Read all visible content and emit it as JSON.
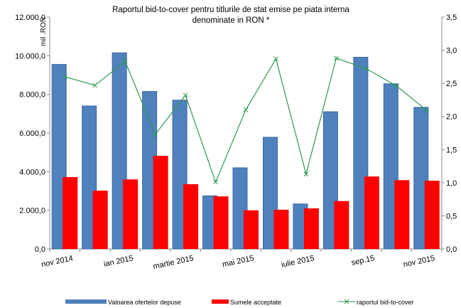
{
  "chart_data": {
    "type": "bar_line",
    "title": [
      "Raportul bid-to-cover pentru titlurile de stat emise pe piata interna",
      "denominate in RON *"
    ],
    "y_unit_label": "mil .RON",
    "categories": [
      "nov 2014",
      null,
      "ian 2015",
      null,
      "martie 2015",
      null,
      "mai  2015",
      null,
      "iulie 2015",
      null,
      "sep.15",
      null,
      "nov 2015"
    ],
    "series": [
      {
        "name": "Valoarea ofertelor depuse",
        "color": "#4f81bd",
        "kind": "bar",
        "values": [
          9550,
          7400,
          10150,
          8150,
          7700,
          2750,
          4200,
          5780,
          2330,
          7100,
          9920,
          8550,
          7330
        ]
      },
      {
        "name": "Sumele acceptate",
        "color": "#ff0000",
        "kind": "bar",
        "values": [
          3720,
          3020,
          3600,
          4820,
          3350,
          2720,
          2000,
          2030,
          2100,
          2480,
          3750,
          3560,
          3530
        ]
      },
      {
        "name": "raportul bid-to-cover",
        "color": "#2e9a4e",
        "kind": "line",
        "axis": "y2",
        "values": [
          2.6,
          2.47,
          2.83,
          1.73,
          2.32,
          1.01,
          2.1,
          2.87,
          1.13,
          2.88,
          2.72,
          2.46,
          2.09
        ]
      }
    ],
    "ylim": [
      0,
      12000
    ],
    "yticks": [
      {
        "value": 0,
        "label": "0,0"
      },
      {
        "value": 2000,
        "label": "2.000,0"
      },
      {
        "value": 4000,
        "label": "4.000,0"
      },
      {
        "value": 6000,
        "label": "6.000,0"
      },
      {
        "value": 8000,
        "label": "8.000,0"
      },
      {
        "value": 10000,
        "label": "10.000,0"
      },
      {
        "value": 12000,
        "label": "12.000,0"
      }
    ],
    "y2lim": [
      0,
      3.5
    ],
    "y2ticks": [
      {
        "value": 0,
        "label": "0,0"
      },
      {
        "value": 0.5,
        "label": "0,5"
      },
      {
        "value": 1,
        "label": "1,0"
      },
      {
        "value": 1.5,
        "label": "1,5"
      },
      {
        "value": 2,
        "label": "2,0"
      },
      {
        "value": 2.5,
        "label": "2,5"
      },
      {
        "value": 3,
        "label": "3,0"
      },
      {
        "value": 3.5,
        "label": "3,5"
      }
    ],
    "grid": false,
    "legend": "bottom"
  }
}
